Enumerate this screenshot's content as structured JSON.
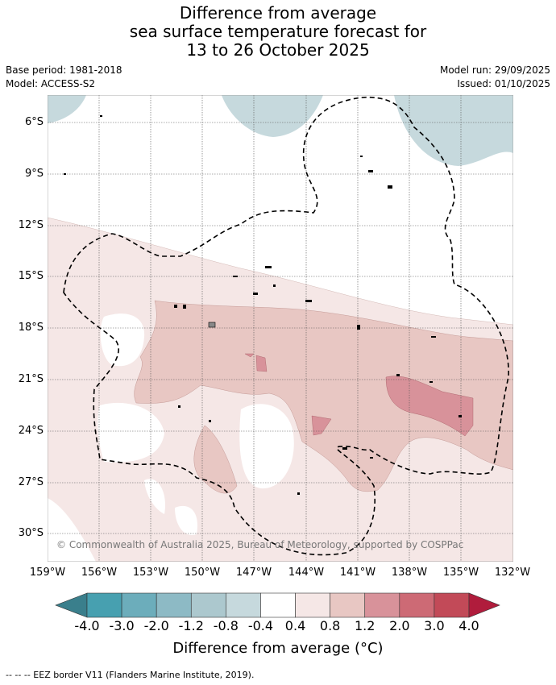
{
  "title": {
    "line1": "Difference from average",
    "line2": "sea surface temperature forecast for",
    "line3": "13 to 26 October 2025"
  },
  "meta": {
    "base_period": "Base period: 1981-2018",
    "model": "Model: ACCESS-S2",
    "model_run": "Model run: 29/09/2025",
    "issued": "Issued: 01/10/2025"
  },
  "map": {
    "lat_labels": [
      "6°S",
      "9°S",
      "12°S",
      "15°S",
      "18°S",
      "21°S",
      "24°S",
      "27°S",
      "30°S"
    ],
    "lon_labels": [
      "159°W",
      "156°W",
      "153°W",
      "150°W",
      "147°W",
      "144°W",
      "141°W",
      "138°W",
      "135°W",
      "132°W"
    ],
    "copyright": "© Commonwealth of Australia 2025, Bureau of Meteorology, supported by COSPPac"
  },
  "colorbar": {
    "ticks": [
      "-4.0",
      "-3.0",
      "-2.0",
      "-1.2",
      "-0.8",
      "-0.4",
      "0.4",
      "0.8",
      "1.2",
      "2.0",
      "3.0",
      "4.0"
    ],
    "colors": [
      "#3a7f8c",
      "#47a0b0",
      "#6cadbb",
      "#8dbac5",
      "#acc8ce",
      "#c6d9dd",
      "#ffffff",
      "#f5e7e6",
      "#e8c7c3",
      "#d8929a",
      "#cd6a75",
      "#c24a58",
      "#b01c3c"
    ],
    "label": "Difference from average (°C)"
  },
  "footer": "-- -- -- EEZ border V11 (Flanders Marine Institute, 2019)."
}
